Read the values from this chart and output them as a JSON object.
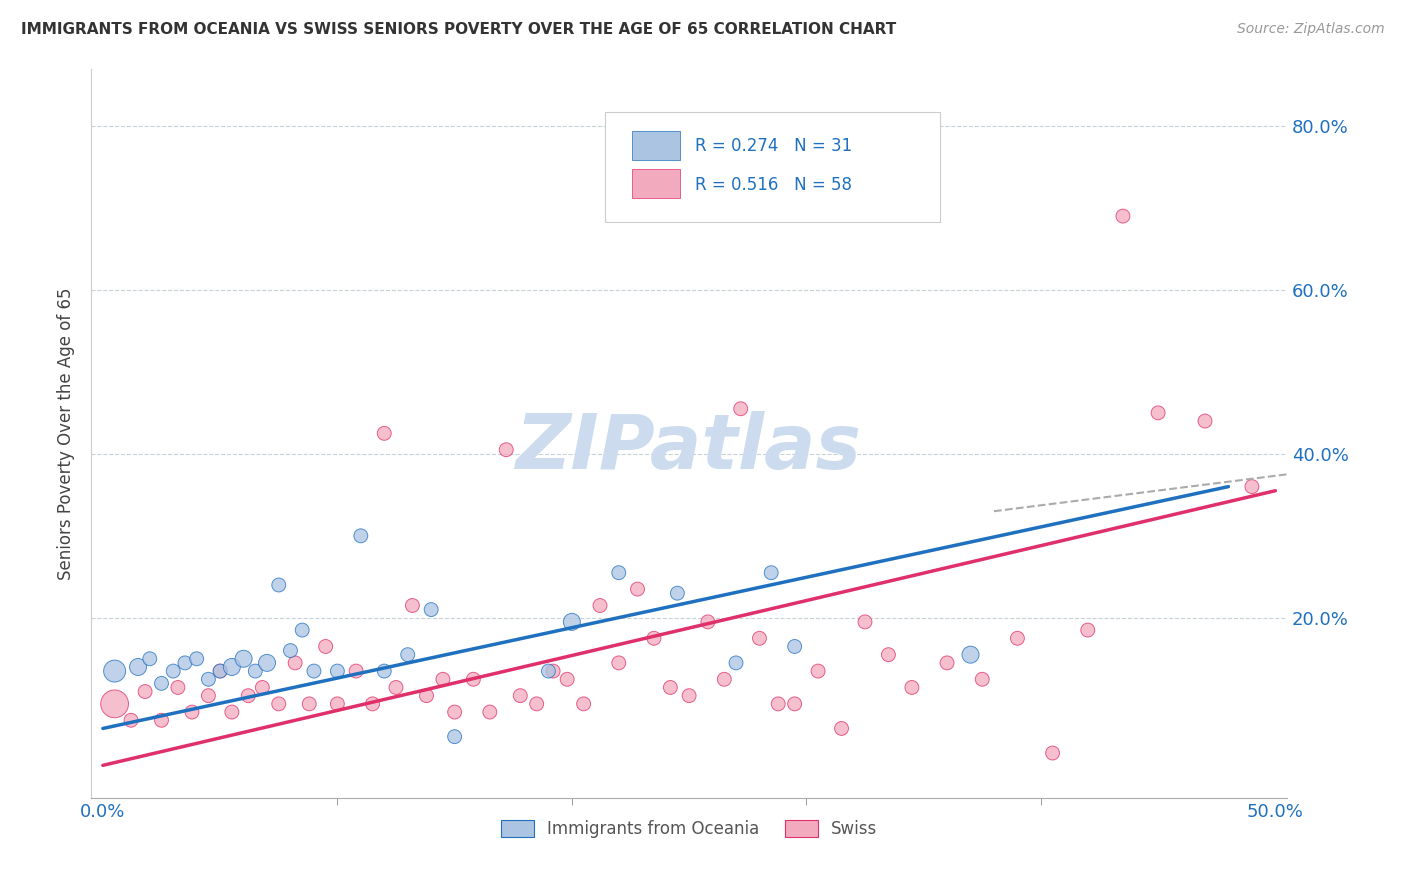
{
  "title": "IMMIGRANTS FROM OCEANIA VS SWISS SENIORS POVERTY OVER THE AGE OF 65 CORRELATION CHART",
  "source": "Source: ZipAtlas.com",
  "xlabel_ticks_show": [
    "0.0%",
    "50.0%"
  ],
  "xlabel_vals_show": [
    0.0,
    0.5
  ],
  "xlabel_vals_minor": [
    0.1,
    0.2,
    0.3,
    0.4
  ],
  "ylabel": "Seniors Poverty Over the Age of 65",
  "ylabel_ticks": [
    "20.0%",
    "40.0%",
    "60.0%",
    "80.0%"
  ],
  "ylabel_vals": [
    0.2,
    0.4,
    0.6,
    0.8
  ],
  "xlim": [
    -0.005,
    0.505
  ],
  "ylim": [
    -0.02,
    0.87
  ],
  "legend_label1": "Immigrants from Oceania",
  "legend_label2": "Swiss",
  "r1": 0.274,
  "n1": 31,
  "r2": 0.516,
  "n2": 58,
  "color_blue": "#aac4e2",
  "color_pink": "#f2aabe",
  "line_color_blue": "#2070c0",
  "line_color_pink": "#e0306a",
  "background_color": "#ffffff",
  "grid_color": "#c8d0d8",
  "watermark_color": "#ccdcee",
  "blue_scatter_x": [
    0.005,
    0.015,
    0.02,
    0.025,
    0.03,
    0.035,
    0.04,
    0.045,
    0.05,
    0.055,
    0.06,
    0.065,
    0.07,
    0.075,
    0.08,
    0.085,
    0.09,
    0.1,
    0.11,
    0.12,
    0.13,
    0.14,
    0.15,
    0.19,
    0.2,
    0.22,
    0.245,
    0.27,
    0.285,
    0.295,
    0.37
  ],
  "blue_scatter_y": [
    0.135,
    0.14,
    0.15,
    0.12,
    0.135,
    0.145,
    0.15,
    0.125,
    0.135,
    0.14,
    0.15,
    0.135,
    0.145,
    0.24,
    0.16,
    0.185,
    0.135,
    0.135,
    0.3,
    0.135,
    0.155,
    0.21,
    0.055,
    0.135,
    0.195,
    0.255,
    0.23,
    0.145,
    0.255,
    0.165,
    0.155
  ],
  "blue_sizes": [
    250,
    150,
    100,
    100,
    100,
    100,
    100,
    100,
    100,
    150,
    150,
    100,
    150,
    100,
    100,
    100,
    100,
    100,
    100,
    100,
    100,
    100,
    100,
    100,
    150,
    100,
    100,
    100,
    100,
    100,
    150
  ],
  "pink_scatter_x": [
    0.005,
    0.012,
    0.018,
    0.025,
    0.032,
    0.038,
    0.045,
    0.05,
    0.055,
    0.062,
    0.068,
    0.075,
    0.082,
    0.088,
    0.095,
    0.1,
    0.108,
    0.115,
    0.12,
    0.125,
    0.132,
    0.138,
    0.145,
    0.15,
    0.158,
    0.165,
    0.172,
    0.178,
    0.185,
    0.192,
    0.198,
    0.205,
    0.212,
    0.22,
    0.228,
    0.235,
    0.242,
    0.25,
    0.258,
    0.265,
    0.272,
    0.28,
    0.288,
    0.295,
    0.305,
    0.315,
    0.325,
    0.335,
    0.345,
    0.36,
    0.375,
    0.39,
    0.405,
    0.42,
    0.435,
    0.45,
    0.47,
    0.49
  ],
  "pink_scatter_y": [
    0.095,
    0.075,
    0.11,
    0.075,
    0.115,
    0.085,
    0.105,
    0.135,
    0.085,
    0.105,
    0.115,
    0.095,
    0.145,
    0.095,
    0.165,
    0.095,
    0.135,
    0.095,
    0.425,
    0.115,
    0.215,
    0.105,
    0.125,
    0.085,
    0.125,
    0.085,
    0.405,
    0.105,
    0.095,
    0.135,
    0.125,
    0.095,
    0.215,
    0.145,
    0.235,
    0.175,
    0.115,
    0.105,
    0.195,
    0.125,
    0.455,
    0.175,
    0.095,
    0.095,
    0.135,
    0.065,
    0.195,
    0.155,
    0.115,
    0.145,
    0.125,
    0.175,
    0.035,
    0.185,
    0.69,
    0.45,
    0.44,
    0.36
  ],
  "pink_sizes": [
    400,
    100,
    100,
    100,
    100,
    100,
    100,
    100,
    100,
    100,
    100,
    100,
    100,
    100,
    100,
    100,
    100,
    100,
    100,
    100,
    100,
    100,
    100,
    100,
    100,
    100,
    100,
    100,
    100,
    100,
    100,
    100,
    100,
    100,
    100,
    100,
    100,
    100,
    100,
    100,
    100,
    100,
    100,
    100,
    100,
    100,
    100,
    100,
    100,
    100,
    100,
    100,
    100,
    100,
    100,
    100,
    100,
    100
  ],
  "blue_line_x": [
    0.0,
    0.48
  ],
  "blue_line_y": [
    0.065,
    0.36
  ],
  "pink_line_x": [
    0.0,
    0.5
  ],
  "pink_line_y": [
    0.02,
    0.355
  ],
  "dashed_line_x": [
    0.38,
    0.505
  ],
  "dashed_line_y": [
    0.33,
    0.375
  ]
}
